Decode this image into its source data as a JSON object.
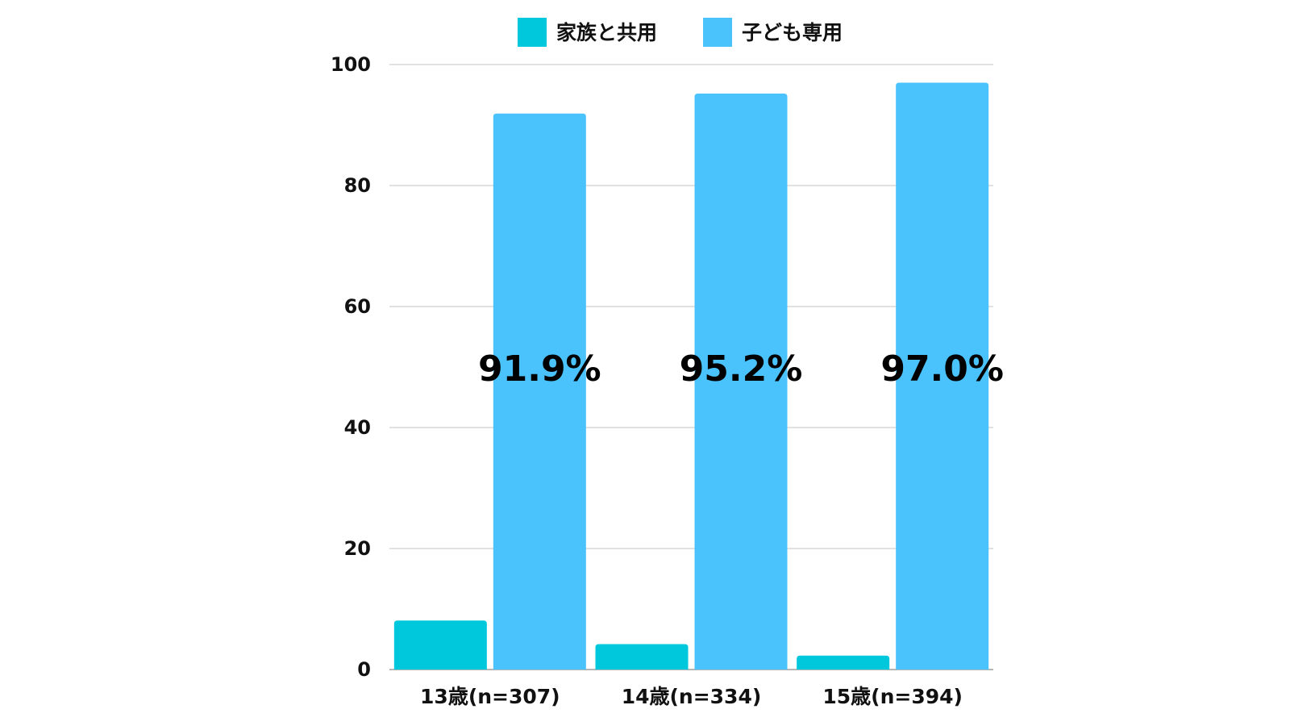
{
  "chart_data": {
    "type": "bar",
    "categories": [
      "13歳(n=307)",
      "14歳(n=334)",
      "15歳(n=394)"
    ],
    "series": [
      {
        "name": "家族と共用",
        "values": [
          8.1,
          4.2,
          2.3
        ],
        "color": "#00c8dc"
      },
      {
        "name": "子ども専用",
        "values": [
          91.9,
          95.2,
          97.0
        ],
        "color": "#4ac3fc"
      }
    ],
    "data_labels": [
      "91.9%",
      "95.2%",
      "97.0%"
    ],
    "data_label_series": "子ども専用",
    "yticks": [
      "0",
      "20",
      "40",
      "60",
      "80",
      "100"
    ],
    "ylim": [
      0,
      100
    ],
    "grid": true,
    "legend_position": "top"
  }
}
